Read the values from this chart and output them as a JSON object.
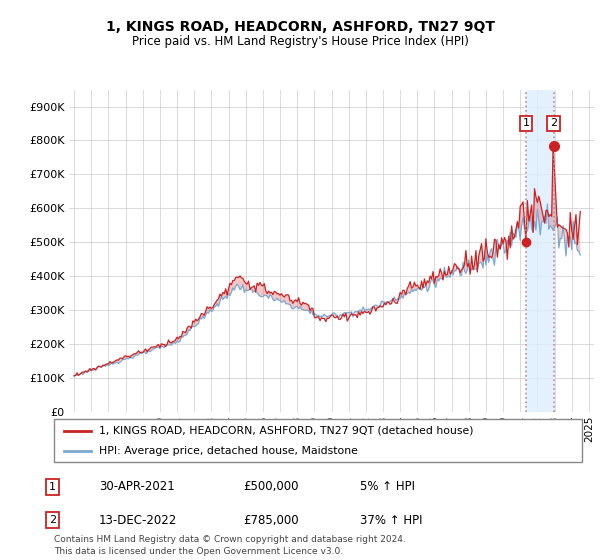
{
  "title": "1, KINGS ROAD, HEADCORN, ASHFORD, TN27 9QT",
  "subtitle": "Price paid vs. HM Land Registry's House Price Index (HPI)",
  "legend_line1": "1, KINGS ROAD, HEADCORN, ASHFORD, TN27 9QT (detached house)",
  "legend_line2": "HPI: Average price, detached house, Maidstone",
  "footnote": "Contains HM Land Registry data © Crown copyright and database right 2024.\nThis data is licensed under the Open Government Licence v3.0.",
  "transaction1_label": "1",
  "transaction1_date": "30-APR-2021",
  "transaction1_price": "£500,000",
  "transaction1_hpi": "5% ↑ HPI",
  "transaction2_label": "2",
  "transaction2_date": "13-DEC-2022",
  "transaction2_price": "£785,000",
  "transaction2_hpi": "37% ↑ HPI",
  "hpi_color": "#7ba7d0",
  "price_color": "#cc2222",
  "marker_color": "#cc2222",
  "vline_color": "#cc8888",
  "fill_color": "#ddeeff",
  "ylim": [
    0,
    950000
  ],
  "yticks": [
    0,
    100000,
    200000,
    300000,
    400000,
    500000,
    600000,
    700000,
    800000,
    900000
  ],
  "ytick_labels": [
    "£0",
    "£100K",
    "£200K",
    "£300K",
    "£400K",
    "£500K",
    "£600K",
    "£700K",
    "£800K",
    "£900K"
  ],
  "xtick_years": [
    1995,
    1996,
    1997,
    1998,
    1999,
    2000,
    2001,
    2002,
    2003,
    2004,
    2005,
    2006,
    2007,
    2008,
    2009,
    2010,
    2011,
    2012,
    2013,
    2014,
    2015,
    2016,
    2017,
    2018,
    2019,
    2020,
    2021,
    2022,
    2023,
    2024,
    2025
  ],
  "transaction1_x": 2021.33,
  "transaction1_y": 500000,
  "transaction2_x": 2022.95,
  "transaction2_y": 785000,
  "xlim_left": 1994.7,
  "xlim_right": 2025.3
}
